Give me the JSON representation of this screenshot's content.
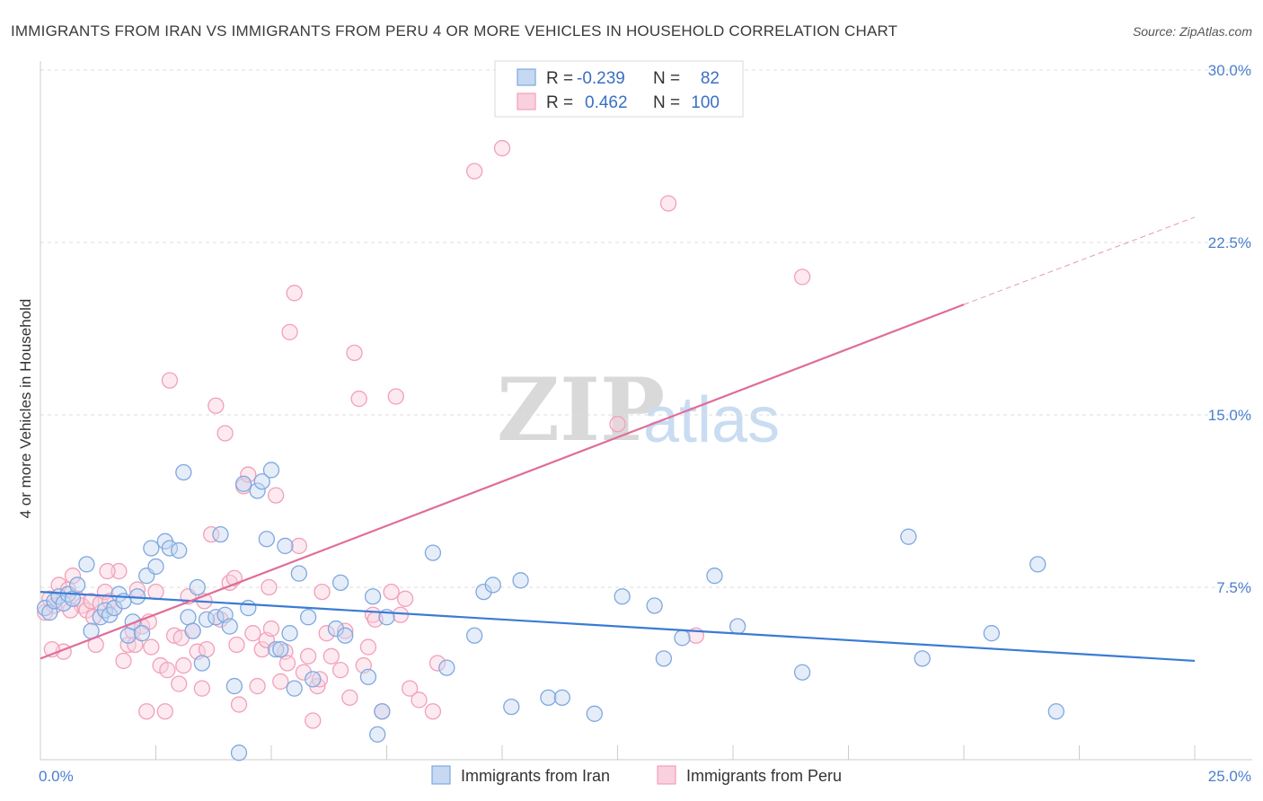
{
  "title": "IMMIGRANTS FROM IRAN VS IMMIGRANTS FROM PERU 4 OR MORE VEHICLES IN HOUSEHOLD CORRELATION CHART",
  "source": "Source: ZipAtlas.com",
  "watermark": {
    "zip": "ZIP",
    "atlas": "atlas"
  },
  "legend_top": {
    "rows": [
      {
        "r_label": "R =",
        "r_value": "-0.239",
        "n_label": "N =",
        "n_value": "82",
        "color": "#7fa8e0"
      },
      {
        "r_label": "R =",
        "r_value": "0.462",
        "n_label": "N =",
        "n_value": "100",
        "color": "#f2a0b8"
      }
    ]
  },
  "legend_bottom": {
    "items": [
      {
        "label": "Immigrants from Iran",
        "color": "#7fa8e0"
      },
      {
        "label": "Immigrants from Peru",
        "color": "#f2a0b8"
      }
    ]
  },
  "chart_data": {
    "type": "scatter",
    "title": "IMMIGRANTS FROM IRAN VS IMMIGRANTS FROM PERU 4 OR MORE VEHICLES IN HOUSEHOLD CORRELATION CHART",
    "xlabel": "",
    "ylabel": "4 or more Vehicles in Household",
    "xlim": [
      0,
      25
    ],
    "ylim": [
      0,
      30
    ],
    "x_tick_labels": [
      "0.0%",
      "25.0%"
    ],
    "y_ticks": [
      7.5,
      15.0,
      22.5,
      30.0
    ],
    "y_tick_labels": [
      "7.5%",
      "15.0%",
      "22.5%",
      "30.0%"
    ],
    "grid": true,
    "series": [
      {
        "name": "Immigrants from Iran",
        "color": "#7fa8e0",
        "line_color": "#3a7bd5",
        "trend": {
          "x0": 0,
          "y0": 7.3,
          "x1": 25,
          "y1": 4.3,
          "dash_from": null
        },
        "points": [
          [
            0.1,
            6.6
          ],
          [
            0.2,
            6.4
          ],
          [
            0.3,
            6.9
          ],
          [
            0.4,
            7.1
          ],
          [
            0.5,
            6.8
          ],
          [
            0.6,
            7.2
          ],
          [
            0.7,
            7.0
          ],
          [
            0.8,
            7.6
          ],
          [
            1.0,
            8.5
          ],
          [
            1.1,
            5.6
          ],
          [
            1.3,
            6.2
          ],
          [
            1.4,
            6.5
          ],
          [
            1.5,
            6.3
          ],
          [
            1.6,
            6.6
          ],
          [
            1.7,
            7.2
          ],
          [
            1.8,
            6.9
          ],
          [
            1.9,
            5.4
          ],
          [
            2.0,
            6.0
          ],
          [
            2.1,
            7.1
          ],
          [
            2.2,
            5.5
          ],
          [
            2.3,
            8.0
          ],
          [
            2.4,
            9.2
          ],
          [
            2.5,
            8.4
          ],
          [
            2.7,
            9.5
          ],
          [
            2.8,
            9.2
          ],
          [
            3.0,
            9.1
          ],
          [
            3.1,
            12.5
          ],
          [
            3.2,
            6.2
          ],
          [
            3.3,
            5.6
          ],
          [
            3.4,
            7.5
          ],
          [
            3.5,
            4.2
          ],
          [
            3.6,
            6.1
          ],
          [
            3.8,
            6.2
          ],
          [
            3.9,
            9.8
          ],
          [
            4.0,
            6.3
          ],
          [
            4.1,
            5.8
          ],
          [
            4.2,
            3.2
          ],
          [
            4.3,
            0.3
          ],
          [
            4.4,
            12.0
          ],
          [
            4.5,
            6.6
          ],
          [
            4.7,
            11.7
          ],
          [
            4.8,
            12.1
          ],
          [
            4.9,
            9.6
          ],
          [
            5.0,
            12.6
          ],
          [
            5.1,
            4.8
          ],
          [
            5.2,
            4.8
          ],
          [
            5.3,
            9.3
          ],
          [
            5.4,
            5.5
          ],
          [
            5.5,
            3.1
          ],
          [
            5.6,
            8.1
          ],
          [
            5.8,
            6.2
          ],
          [
            5.9,
            3.5
          ],
          [
            6.4,
            5.7
          ],
          [
            6.5,
            7.7
          ],
          [
            6.6,
            5.4
          ],
          [
            7.1,
            3.6
          ],
          [
            7.2,
            7.1
          ],
          [
            7.3,
            1.1
          ],
          [
            7.4,
            2.1
          ],
          [
            7.5,
            6.2
          ],
          [
            8.5,
            9.0
          ],
          [
            8.8,
            4.0
          ],
          [
            9.4,
            5.4
          ],
          [
            9.6,
            7.3
          ],
          [
            9.8,
            7.6
          ],
          [
            10.2,
            2.3
          ],
          [
            10.4,
            7.8
          ],
          [
            11.0,
            2.7
          ],
          [
            11.3,
            2.7
          ],
          [
            12.0,
            2.0
          ],
          [
            12.6,
            7.1
          ],
          [
            13.3,
            6.7
          ],
          [
            13.5,
            4.4
          ],
          [
            13.9,
            5.3
          ],
          [
            14.6,
            8.0
          ],
          [
            15.1,
            5.8
          ],
          [
            16.5,
            3.8
          ],
          [
            18.8,
            9.7
          ],
          [
            19.1,
            4.4
          ],
          [
            20.6,
            5.5
          ],
          [
            21.6,
            8.5
          ],
          [
            22.0,
            2.1
          ]
        ]
      },
      {
        "name": "Immigrants from Peru",
        "color": "#f2a0b8",
        "line_color": "#e06c9a",
        "trend": {
          "x0": 0,
          "y0": 4.4,
          "x1": 20,
          "y1": 19.8,
          "dash_to_x": 25,
          "dash_to_y": 23.6
        },
        "points": [
          [
            0.1,
            6.4
          ],
          [
            0.2,
            7.0
          ],
          [
            0.3,
            6.7
          ],
          [
            0.4,
            7.6
          ],
          [
            0.5,
            4.7
          ],
          [
            0.6,
            7.4
          ],
          [
            0.7,
            8.0
          ],
          [
            0.8,
            7.0
          ],
          [
            0.9,
            6.7
          ],
          [
            1.0,
            6.5
          ],
          [
            1.1,
            6.9
          ],
          [
            1.2,
            5.0
          ],
          [
            1.3,
            6.8
          ],
          [
            1.4,
            7.3
          ],
          [
            1.5,
            6.9
          ],
          [
            1.6,
            6.6
          ],
          [
            1.7,
            8.2
          ],
          [
            1.8,
            4.3
          ],
          [
            1.9,
            5.0
          ],
          [
            2.0,
            5.6
          ],
          [
            2.1,
            7.4
          ],
          [
            2.2,
            5.8
          ],
          [
            2.3,
            2.1
          ],
          [
            2.4,
            4.9
          ],
          [
            2.5,
            7.3
          ],
          [
            2.6,
            4.1
          ],
          [
            2.7,
            2.1
          ],
          [
            2.8,
            16.5
          ],
          [
            2.9,
            5.4
          ],
          [
            3.0,
            3.3
          ],
          [
            3.1,
            4.1
          ],
          [
            3.2,
            7.1
          ],
          [
            3.3,
            5.6
          ],
          [
            3.4,
            4.7
          ],
          [
            3.5,
            3.1
          ],
          [
            3.6,
            4.8
          ],
          [
            3.7,
            9.8
          ],
          [
            3.8,
            15.4
          ],
          [
            3.9,
            6.1
          ],
          [
            4.0,
            14.2
          ],
          [
            4.1,
            7.7
          ],
          [
            4.2,
            7.9
          ],
          [
            4.3,
            2.4
          ],
          [
            4.4,
            11.9
          ],
          [
            4.5,
            12.4
          ],
          [
            4.6,
            5.5
          ],
          [
            4.7,
            3.2
          ],
          [
            4.8,
            4.8
          ],
          [
            4.9,
            5.2
          ],
          [
            5.0,
            5.7
          ],
          [
            5.1,
            11.5
          ],
          [
            5.2,
            3.4
          ],
          [
            5.3,
            4.7
          ],
          [
            5.4,
            18.6
          ],
          [
            5.5,
            20.3
          ],
          [
            5.6,
            9.3
          ],
          [
            5.7,
            3.8
          ],
          [
            5.8,
            4.5
          ],
          [
            5.9,
            1.7
          ],
          [
            6.0,
            3.2
          ],
          [
            6.1,
            7.3
          ],
          [
            6.2,
            5.5
          ],
          [
            6.3,
            4.5
          ],
          [
            6.5,
            3.9
          ],
          [
            6.6,
            5.6
          ],
          [
            6.7,
            2.7
          ],
          [
            6.8,
            17.7
          ],
          [
            6.9,
            15.7
          ],
          [
            7.0,
            4.1
          ],
          [
            7.1,
            4.9
          ],
          [
            7.2,
            6.3
          ],
          [
            7.4,
            2.1
          ],
          [
            7.6,
            7.3
          ],
          [
            7.7,
            15.8
          ],
          [
            7.8,
            6.3
          ],
          [
            7.9,
            7.0
          ],
          [
            8.0,
            3.1
          ],
          [
            8.2,
            2.6
          ],
          [
            8.5,
            2.1
          ],
          [
            8.6,
            4.2
          ],
          [
            9.4,
            25.6
          ],
          [
            10.0,
            26.6
          ],
          [
            12.5,
            14.6
          ],
          [
            13.6,
            24.2
          ],
          [
            14.2,
            5.4
          ],
          [
            16.5,
            21.0
          ],
          [
            0.25,
            4.8
          ],
          [
            1.15,
            6.2
          ],
          [
            2.35,
            6.0
          ],
          [
            3.55,
            6.9
          ],
          [
            0.65,
            6.5
          ],
          [
            1.45,
            8.2
          ],
          [
            2.05,
            5.0
          ],
          [
            2.75,
            3.9
          ],
          [
            3.05,
            5.3
          ],
          [
            4.25,
            5.0
          ],
          [
            4.95,
            7.5
          ],
          [
            5.35,
            4.2
          ],
          [
            6.05,
            3.5
          ],
          [
            7.25,
            6.1
          ]
        ]
      }
    ]
  }
}
